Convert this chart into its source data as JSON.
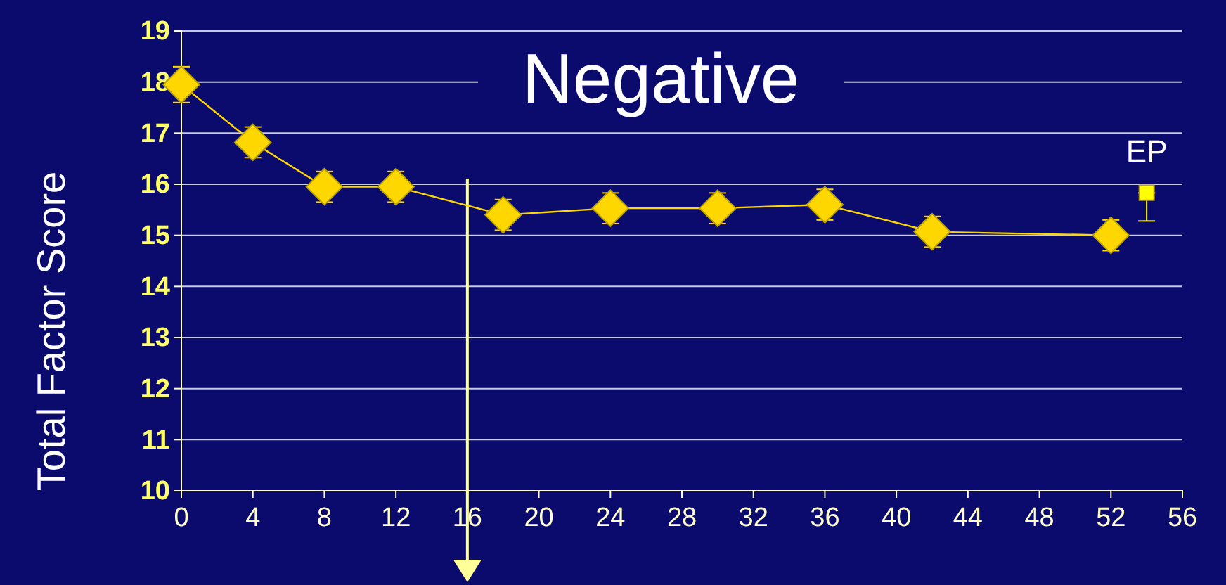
{
  "chart_data": {
    "type": "line",
    "title": "Negative",
    "ylabel": "Total Factor Score",
    "xlim": [
      0,
      56
    ],
    "xticks": [
      0,
      4,
      8,
      12,
      16,
      20,
      24,
      28,
      32,
      36,
      40,
      44,
      48,
      52,
      56
    ],
    "ylim": [
      10,
      19
    ],
    "yticks": [
      10,
      11,
      12,
      13,
      14,
      15,
      16,
      17,
      18,
      19
    ],
    "grid": "y",
    "marker": "diamond",
    "series": [
      {
        "color": "#ffd700",
        "x": [
          0,
          4,
          8,
          12,
          18,
          24,
          30,
          36,
          42,
          52
        ],
        "values": [
          17.95,
          16.82,
          15.95,
          15.95,
          15.4,
          15.53,
          15.53,
          15.6,
          15.07,
          15.0
        ],
        "errors": [
          0.35,
          0.3,
          0.3,
          0.3,
          0.3,
          0.3,
          0.3,
          0.3,
          0.3,
          0.3
        ]
      },
      {
        "type": "scatter",
        "name": "EP",
        "color": "#ffff00",
        "marker": "square",
        "x": [
          54
        ],
        "values": [
          15.83
        ],
        "errors": [
          [
            15.28,
            15.83
          ]
        ]
      }
    ],
    "ref_lines": [
      {
        "axis": "x",
        "value": 16,
        "color": "#ffff99"
      }
    ]
  }
}
